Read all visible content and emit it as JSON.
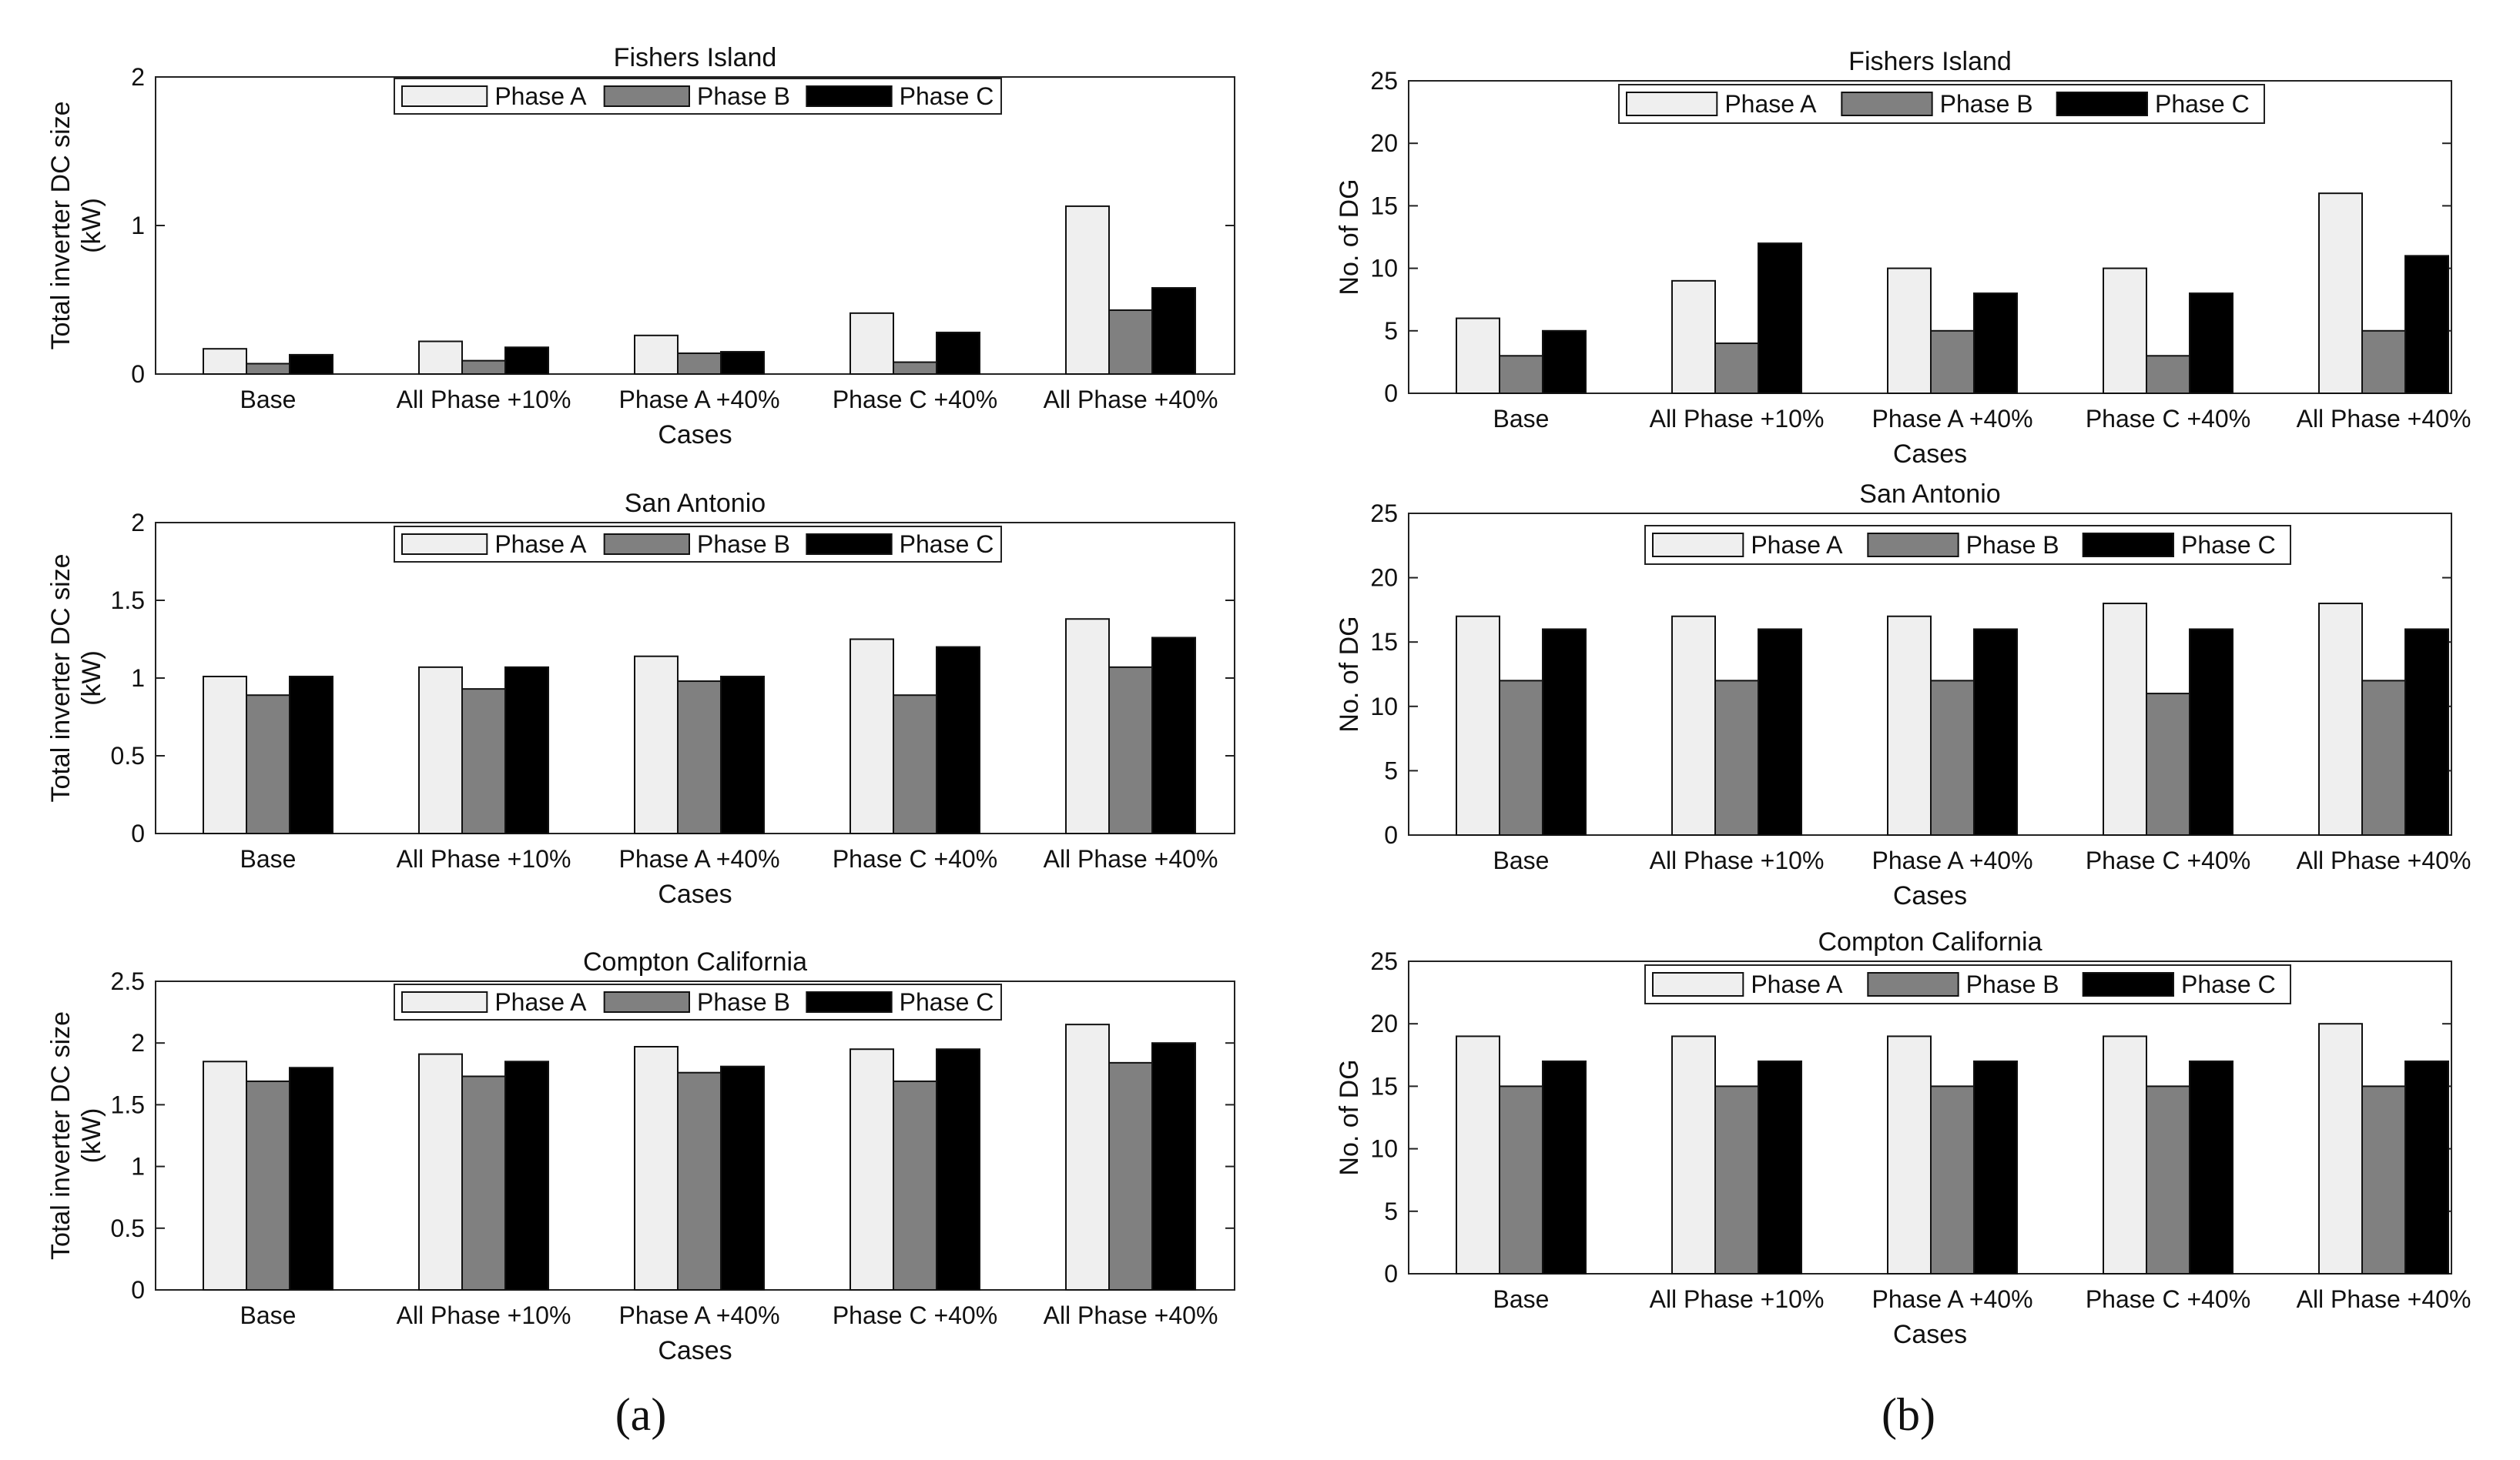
{
  "panel_labels": [
    "(a)",
    "(b)"
  ],
  "chart_data": [
    {
      "type": "bar",
      "title": "Fishers Island",
      "xlabel": "Cases",
      "ylabel": [
        "Total inverter DC size",
        "(kW)"
      ],
      "ylim": [
        0,
        2
      ],
      "yticks": [
        0,
        1,
        2
      ],
      "categories": [
        "Base",
        "All Phase +10%",
        "Phase A +40%",
        "Phase C +40%",
        "All Phase +40%"
      ],
      "series": [
        {
          "name": "Phase A",
          "color": "#efefef",
          "values": [
            0.17,
            0.22,
            0.26,
            0.41,
            1.13
          ]
        },
        {
          "name": "Phase B",
          "color": "#808080",
          "values": [
            0.07,
            0.09,
            0.14,
            0.08,
            0.43
          ]
        },
        {
          "name": "Phase C",
          "color": "#000000",
          "values": [
            0.13,
            0.18,
            0.15,
            0.28,
            0.58
          ]
        }
      ],
      "legend": "top-center"
    },
    {
      "type": "bar",
      "title": "San Antonio",
      "xlabel": "Cases",
      "ylabel": [
        "Total inverter DC size",
        "(kW)"
      ],
      "ylim": [
        0,
        2
      ],
      "yticks": [
        0,
        0.5,
        1,
        1.5,
        2
      ],
      "categories": [
        "Base",
        "All Phase +10%",
        "Phase A +40%",
        "Phase C +40%",
        "All Phase +40%"
      ],
      "series": [
        {
          "name": "Phase A",
          "color": "#efefef",
          "values": [
            1.01,
            1.07,
            1.14,
            1.25,
            1.38
          ]
        },
        {
          "name": "Phase B",
          "color": "#808080",
          "values": [
            0.89,
            0.93,
            0.98,
            0.89,
            1.07
          ]
        },
        {
          "name": "Phase C",
          "color": "#000000",
          "values": [
            1.01,
            1.07,
            1.01,
            1.2,
            1.26
          ]
        }
      ],
      "legend": "top-center"
    },
    {
      "type": "bar",
      "title": "Compton California",
      "xlabel": "Cases",
      "ylabel": [
        "Total inverter DC size",
        "(kW)"
      ],
      "ylim": [
        0,
        2.5
      ],
      "yticks": [
        0,
        0.5,
        1,
        1.5,
        2,
        2.5
      ],
      "categories": [
        "Base",
        "All Phase +10%",
        "Phase A +40%",
        "Phase C +40%",
        "All Phase +40%"
      ],
      "series": [
        {
          "name": "Phase A",
          "color": "#efefef",
          "values": [
            1.85,
            1.91,
            1.97,
            1.95,
            2.15
          ]
        },
        {
          "name": "Phase B",
          "color": "#808080",
          "values": [
            1.69,
            1.73,
            1.76,
            1.69,
            1.84
          ]
        },
        {
          "name": "Phase C",
          "color": "#000000",
          "values": [
            1.8,
            1.85,
            1.81,
            1.95,
            2.0
          ]
        }
      ],
      "legend": "top-center"
    },
    {
      "type": "bar",
      "title": "Fishers Island",
      "xlabel": "Cases",
      "ylabel": [
        "No. of DG"
      ],
      "ylim": [
        0,
        25
      ],
      "yticks": [
        0,
        5,
        10,
        15,
        20,
        25
      ],
      "categories": [
        "Base",
        "All Phase +10%",
        "Phase A +40%",
        "Phase C +40%",
        "All Phase +40%"
      ],
      "series": [
        {
          "name": "Phase A",
          "color": "#efefef",
          "values": [
            6,
            9,
            10,
            10,
            16
          ]
        },
        {
          "name": "Phase B",
          "color": "#808080",
          "values": [
            3,
            4,
            5,
            3,
            5
          ]
        },
        {
          "name": "Phase C",
          "color": "#000000",
          "values": [
            5,
            12,
            8,
            8,
            11
          ]
        }
      ],
      "legend": "top-center"
    },
    {
      "type": "bar",
      "title": "San Antonio",
      "xlabel": "Cases",
      "ylabel": [
        "No. of DG"
      ],
      "ylim": [
        0,
        25
      ],
      "yticks": [
        0,
        5,
        10,
        15,
        20,
        25
      ],
      "categories": [
        "Base",
        "All Phase +10%",
        "Phase A +40%",
        "Phase C +40%",
        "All Phase +40%"
      ],
      "series": [
        {
          "name": "Phase A",
          "color": "#efefef",
          "values": [
            17,
            17,
            17,
            18,
            18
          ]
        },
        {
          "name": "Phase B",
          "color": "#808080",
          "values": [
            12,
            12,
            12,
            11,
            12
          ]
        },
        {
          "name": "Phase C",
          "color": "#000000",
          "values": [
            16,
            16,
            16,
            16,
            16
          ]
        }
      ],
      "legend": "top-center"
    },
    {
      "type": "bar",
      "title": "Compton California",
      "xlabel": "Cases",
      "ylabel": [
        "No. of DG"
      ],
      "ylim": [
        0,
        25
      ],
      "yticks": [
        0,
        5,
        10,
        15,
        20,
        25
      ],
      "categories": [
        "Base",
        "All Phase +10%",
        "Phase A +40%",
        "Phase C +40%",
        "All Phase +40%"
      ],
      "series": [
        {
          "name": "Phase A",
          "color": "#efefef",
          "values": [
            19,
            19,
            19,
            19,
            20
          ]
        },
        {
          "name": "Phase B",
          "color": "#808080",
          "values": [
            15,
            15,
            15,
            15,
            15
          ]
        },
        {
          "name": "Phase C",
          "color": "#000000",
          "values": [
            17,
            17,
            17,
            17,
            17
          ]
        }
      ],
      "legend": "top-center"
    }
  ]
}
